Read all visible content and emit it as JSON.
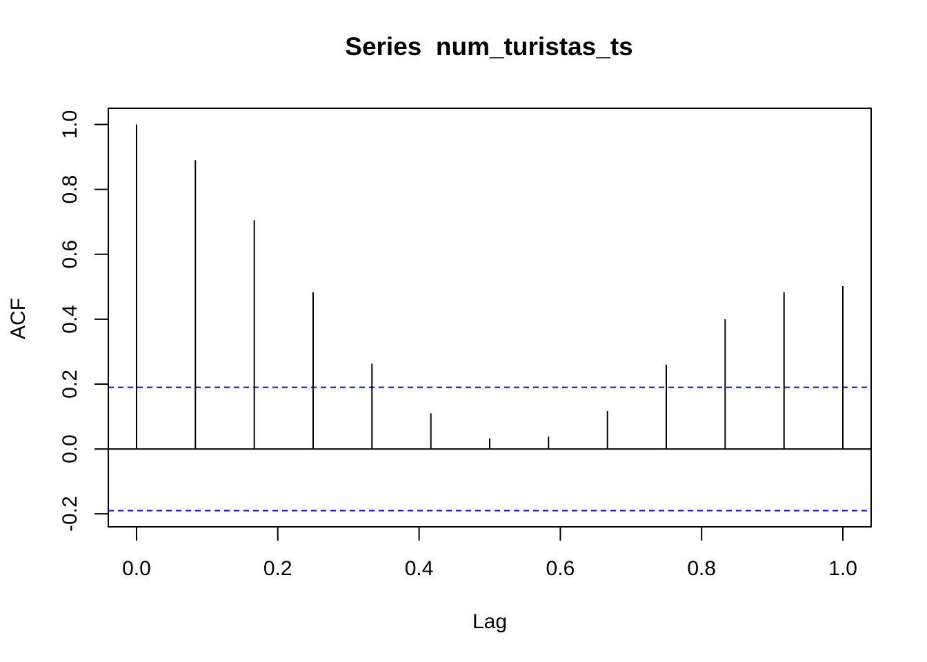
{
  "chart_data": {
    "type": "bar",
    "title": "Series  num_turistas_ts",
    "xlabel": "Lag",
    "ylabel": "ACF",
    "xlim": [
      -0.04,
      1.04
    ],
    "ylim": [
      -0.24,
      1.05
    ],
    "x_ticks": [
      0.0,
      0.2,
      0.4,
      0.6,
      0.8,
      1.0
    ],
    "x_tick_labels": [
      "0.0",
      "0.2",
      "0.4",
      "0.6",
      "0.8",
      "1.0"
    ],
    "y_ticks": [
      -0.2,
      0.0,
      0.2,
      0.4,
      0.6,
      0.8,
      1.0
    ],
    "y_tick_labels": [
      "-0.2",
      "0.0",
      "0.2",
      "0.4",
      "0.6",
      "0.8",
      "1.0"
    ],
    "lags": [
      0.0,
      0.0833,
      0.1667,
      0.25,
      0.3333,
      0.4167,
      0.5,
      0.5833,
      0.6667,
      0.75,
      0.8333,
      0.9167,
      1.0
    ],
    "acf": [
      1.0,
      0.89,
      0.705,
      0.483,
      0.263,
      0.11,
      0.033,
      0.038,
      0.117,
      0.26,
      0.4,
      0.483,
      0.502
    ],
    "confidence_bound": 0.19,
    "zero_line": true,
    "grid": false,
    "colors": {
      "bars": "#000000",
      "confidence_lines": "#0000ff",
      "axes": "#000000"
    }
  }
}
